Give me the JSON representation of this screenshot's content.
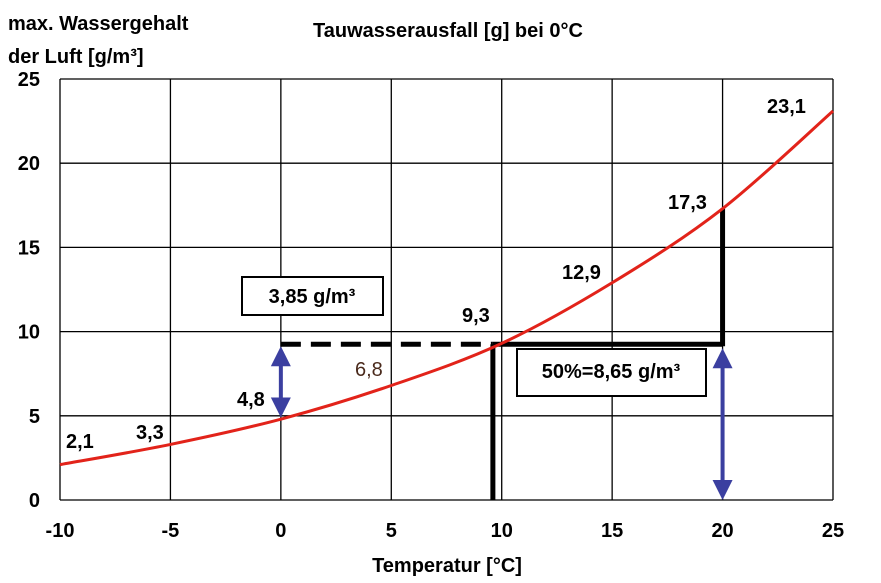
{
  "chart_data": {
    "type": "line",
    "title": "Tauwasserausfall [g] bei 0°C",
    "ylabel_line1": "max. Wassergehalt",
    "ylabel_line2": "der Luft [g/m³]",
    "xlabel": "Temperatur [°C]",
    "xlim": [
      -10,
      25
    ],
    "ylim": [
      0,
      25
    ],
    "xticks": [
      "-10",
      "-5",
      "0",
      "5",
      "10",
      "15",
      "20",
      "25"
    ],
    "yticks": [
      "0",
      "5",
      "10",
      "15",
      "20",
      "25"
    ],
    "grid": true,
    "series": [
      {
        "color": "#e2231a",
        "x": [
          -10,
          -5,
          0,
          5,
          10,
          15,
          20,
          25
        ],
        "y": [
          2.1,
          3.3,
          4.8,
          6.8,
          9.3,
          12.9,
          17.3,
          23.1
        ]
      }
    ],
    "data_labels": [
      "2,1",
      "3,3",
      "4,8",
      "6,8",
      "9,3",
      "12,9",
      "17,3",
      "23,1"
    ],
    "annotations": {
      "box_left": "3,85 g/m³",
      "box_right": "50%=8,65 g/m³"
    }
  }
}
